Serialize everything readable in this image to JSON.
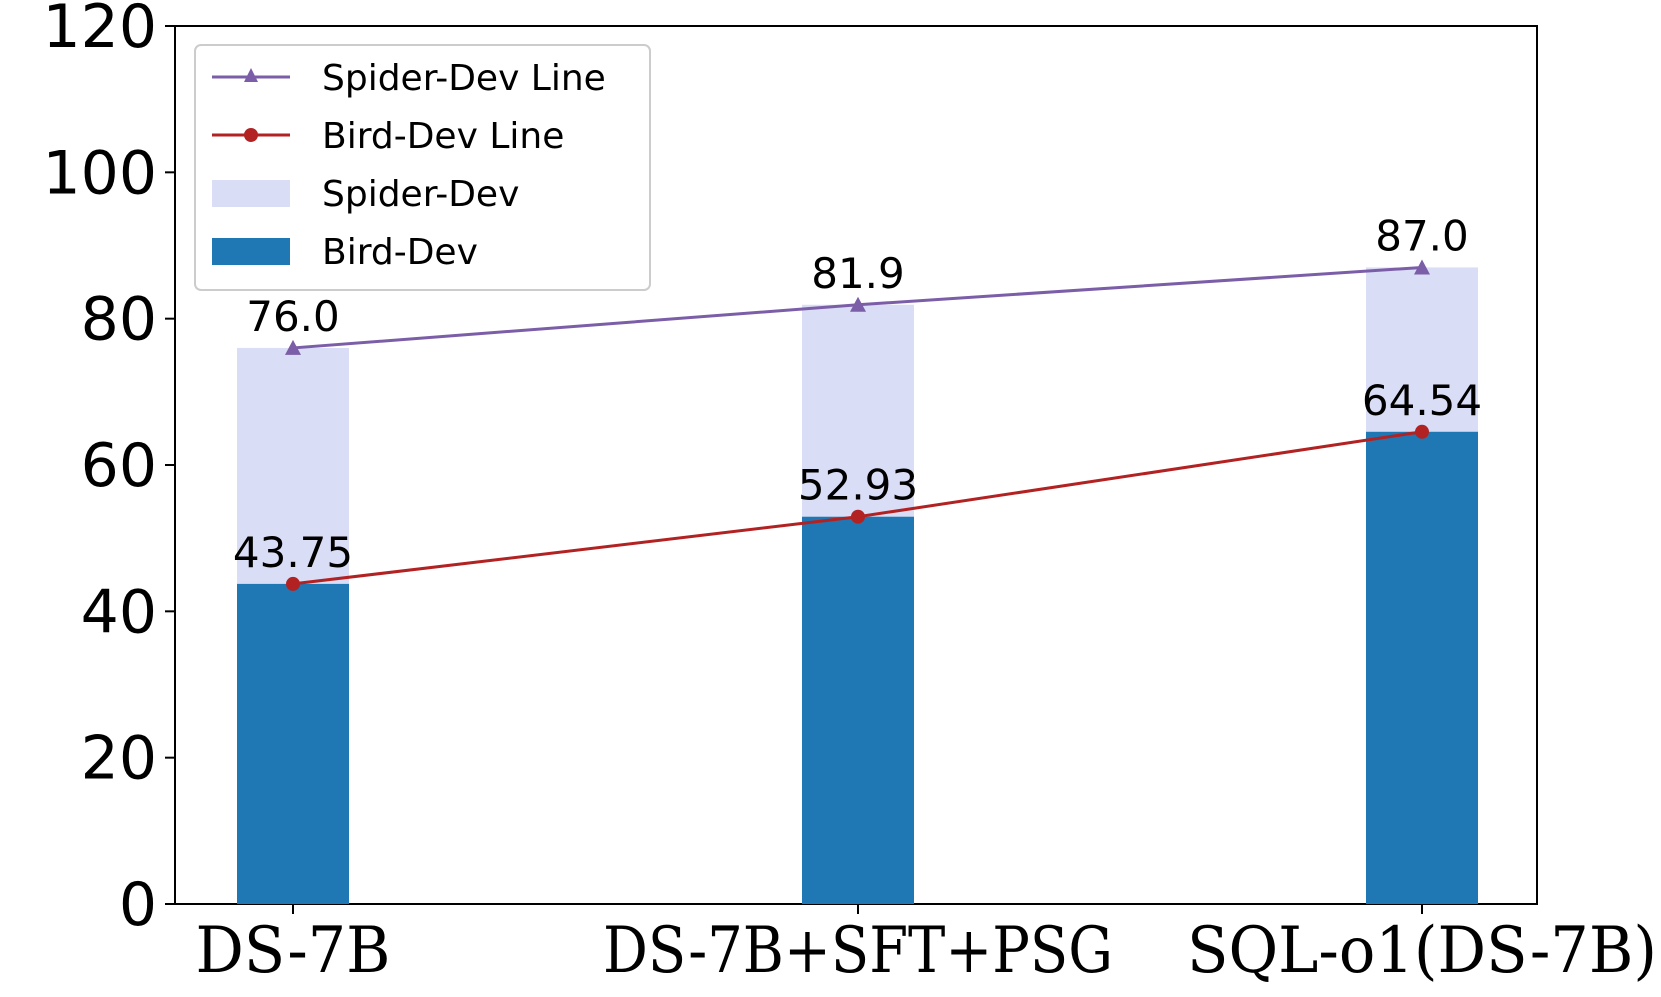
{
  "chart_data": {
    "type": "bar",
    "title": "",
    "xlabel": "",
    "ylabel": "",
    "ylim": [
      0,
      120
    ],
    "yticks": [
      0,
      20,
      40,
      60,
      80,
      100,
      120
    ],
    "categories": [
      "DS-7B",
      "DS-7B+SFT+PSG",
      "SQL-o1(DS-7B)"
    ],
    "series": [
      {
        "name": "Spider-Dev",
        "kind": "bar",
        "color": "#d9ddf5",
        "values": [
          76.0,
          81.9,
          87.0
        ]
      },
      {
        "name": "Bird-Dev",
        "kind": "bar",
        "color": "#1f77b4",
        "values": [
          43.75,
          52.93,
          64.54
        ]
      },
      {
        "name": "Spider-Dev Line",
        "kind": "line",
        "marker": "triangle",
        "color": "#7b5ea7",
        "values": [
          76.0,
          81.9,
          87.0
        ]
      },
      {
        "name": "Bird-Dev Line",
        "kind": "line",
        "marker": "circle",
        "color": "#b22222",
        "values": [
          43.75,
          52.93,
          64.54
        ]
      }
    ],
    "data_labels": {
      "spider": [
        "76.0",
        "81.9",
        "87.0"
      ],
      "bird": [
        "43.75",
        "52.93",
        "64.54"
      ]
    },
    "legend": {
      "position": "top-left",
      "entries": [
        "Spider-Dev Line",
        "Bird-Dev Line",
        "Spider-Dev",
        "Bird-Dev"
      ]
    },
    "grid": false
  }
}
